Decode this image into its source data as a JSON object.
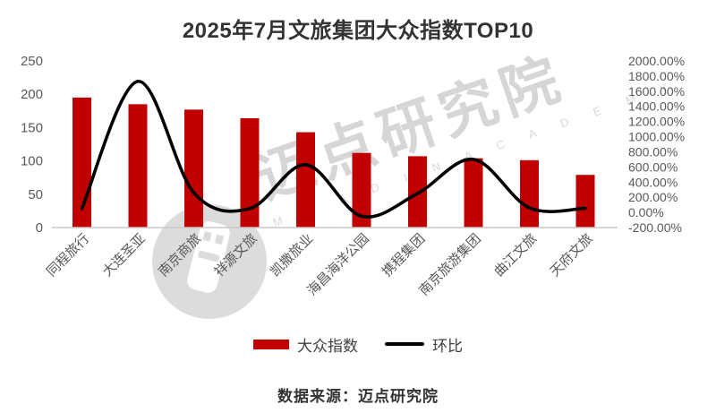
{
  "title": "2025年7月文旅集团大众指数TOP10",
  "source": "数据来源：迈点研究院",
  "legend": {
    "bar_label": "大众指数",
    "line_label": "环比"
  },
  "watermark": {
    "text": "迈点研究院",
    "subtext": "M E A D I N A C A D E M Y",
    "logo": "meadin-pin-logo"
  },
  "colors": {
    "bar": "#C00000",
    "line": "#000000",
    "axis_text": "#595959",
    "title_text": "#333333",
    "axis_line": "#C8C8C8",
    "watermark": "#D6D6D6",
    "background": "#FFFFFF"
  },
  "chart_data": {
    "type": "bar",
    "subtype": "combo-bar-line",
    "title": "2025年7月文旅集团大众指数TOP10",
    "categories": [
      "同程旅行",
      "大连圣亚",
      "南京商旅",
      "祥源文旅",
      "凯撒旅业",
      "海昌海洋公园",
      "携程集团",
      "南京旅游集团",
      "曲江文旅",
      "天府文旅"
    ],
    "series": [
      {
        "name": "大众指数",
        "type": "bar",
        "axis": "left",
        "values": [
          195,
          185,
          177,
          164,
          143,
          112,
          107,
          104,
          101,
          79
        ]
      },
      {
        "name": "环比",
        "type": "line",
        "axis": "right",
        "unit": "%",
        "values": [
          50,
          1730,
          260,
          50,
          630,
          -50,
          250,
          700,
          60,
          55
        ]
      }
    ],
    "left_axis": {
      "min": 0,
      "max": 250,
      "step": 50,
      "ticks": [
        "250",
        "200",
        "150",
        "100",
        "50",
        "0"
      ]
    },
    "right_axis": {
      "min": -200,
      "max": 2000,
      "step": 200,
      "ticks": [
        "2000.00%",
        "1800.00%",
        "1600.00%",
        "1400.00%",
        "1200.00%",
        "1000.00%",
        "800.00%",
        "600.00%",
        "400.00%",
        "200.00%",
        "0.00%",
        "-200.00%"
      ]
    },
    "grid": false,
    "legend_position": "bottom",
    "line_smooth": true
  }
}
